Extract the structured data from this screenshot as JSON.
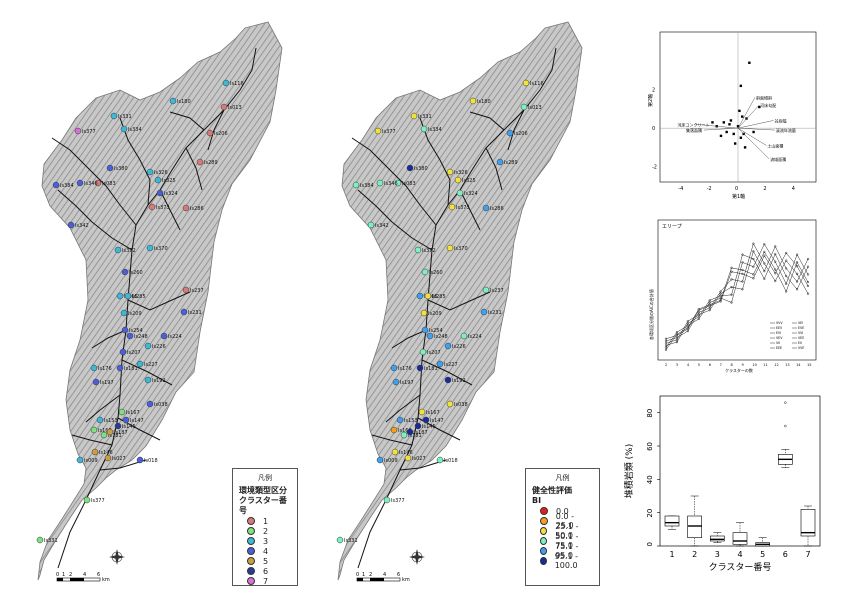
{
  "map_left": {
    "legend_title": "凡例",
    "legend_subtitle1": "環境類型区分",
    "legend_subtitle2": "クラスター番号",
    "classes": [
      {
        "label": "1",
        "color": "#d97a7a"
      },
      {
        "label": "2",
        "color": "#7ee07e"
      },
      {
        "label": "3",
        "color": "#3fb8d8"
      },
      {
        "label": "4",
        "color": "#4a5fd8"
      },
      {
        "label": "5",
        "color": "#c8a040"
      },
      {
        "label": "6",
        "color": "#2a3a9a"
      },
      {
        "label": "7",
        "color": "#d870d8"
      }
    ]
  },
  "map_right": {
    "legend_title": "凡例",
    "legend_subtitle1": "健全性評価",
    "legend_subtitle2": "BI",
    "classes": [
      {
        "label": "0.0",
        "color": "#e02020"
      },
      {
        "label": "0.0 - 25.0",
        "color": "#f0a020"
      },
      {
        "label": "25.1 - 50.0",
        "color": "#f0e040"
      },
      {
        "label": "50.1 - 75.0",
        "color": "#7ef0c0"
      },
      {
        "label": "75.1 - 95.0",
        "color": "#40a0f0"
      },
      {
        "label": "95.1 - 100.0",
        "color": "#1a2a9a"
      }
    ]
  },
  "scale_ticks": [
    "0",
    "1",
    "2",
    "4",
    "6"
  ],
  "scale_unit": "km",
  "site_labels": [
    "Is377",
    "Is331",
    "Is334",
    "Is180",
    "Is116",
    "Is013",
    "Is206",
    "Is289",
    "Is380",
    "Is326",
    "Is325",
    "Is324",
    "Is083",
    "Is384",
    "Is346",
    "Is373",
    "Is286",
    "Is342",
    "Is372",
    "Is370",
    "Is260",
    "Is237",
    "Is265",
    "Is285",
    "Is209",
    "Is231",
    "Is254",
    "Is248",
    "Is224",
    "Is226",
    "Is207",
    "Is227",
    "Is181",
    "Is176",
    "Is197",
    "Is192",
    "Is038",
    "Is167",
    "Is153",
    "Is166",
    "Is181",
    "Is187",
    "Is145",
    "Is147",
    "Is146",
    "Is027",
    "Is018",
    "Is009"
  ],
  "pca_plot": {
    "xlabel": "第1軸",
    "ylabel": "第2軸",
    "x_ticks": [
      "-4",
      "-2",
      "0",
      "2",
      "4"
    ],
    "y_ticks": [
      "-2",
      "0",
      "2"
    ],
    "vectors": [
      "斜面傾斜",
      "河床勾配",
      "谷底幅",
      "溪流年流量",
      "土山面積",
      "流域面積",
      "河床コンクリート",
      "集落面積"
    ]
  },
  "line_chart": {
    "title": "エリープ",
    "xlabel": "クラスターの数",
    "ylabel": "各環境区分間のAICの合計値",
    "x_ticks": [
      "2",
      "3",
      "4",
      "5",
      "6",
      "7",
      "8",
      "9",
      "10",
      "11",
      "12",
      "13",
      "14",
      "15"
    ],
    "legend": [
      "VVV",
      "EEV",
      "EVI",
      "VEV",
      "VII",
      "EEE",
      "VEI",
      "EVE",
      "VVI",
      "VEE",
      "EII",
      "VVE"
    ]
  },
  "chart_data": {
    "type": "box",
    "xlabel": "クラスター番号",
    "ylabel": "堆積岩類 (%)",
    "categories": [
      "1",
      "2",
      "3",
      "4",
      "5",
      "6",
      "7"
    ],
    "y_ticks": [
      "0",
      "20",
      "40",
      "60",
      "80"
    ],
    "ylim": [
      0,
      90
    ],
    "boxes": [
      {
        "min": 10,
        "q1": 12,
        "median": 14,
        "q3": 18,
        "max": 18
      },
      {
        "min": 0,
        "q1": 5,
        "median": 12,
        "q3": 18,
        "max": 30
      },
      {
        "min": 2,
        "q1": 3,
        "median": 4,
        "q3": 6,
        "max": 8
      },
      {
        "min": 0,
        "q1": 1,
        "median": 3,
        "q3": 8,
        "max": 14
      },
      {
        "min": 0,
        "q1": 0,
        "median": 1,
        "q3": 2,
        "max": 5
      },
      {
        "min": 47,
        "q1": 49,
        "median": 52,
        "q3": 55,
        "max": 58,
        "outliers": [
          86,
          72
        ]
      },
      {
        "min": 0,
        "q1": 6,
        "median": 8,
        "q3": 22,
        "max": 24
      }
    ]
  }
}
